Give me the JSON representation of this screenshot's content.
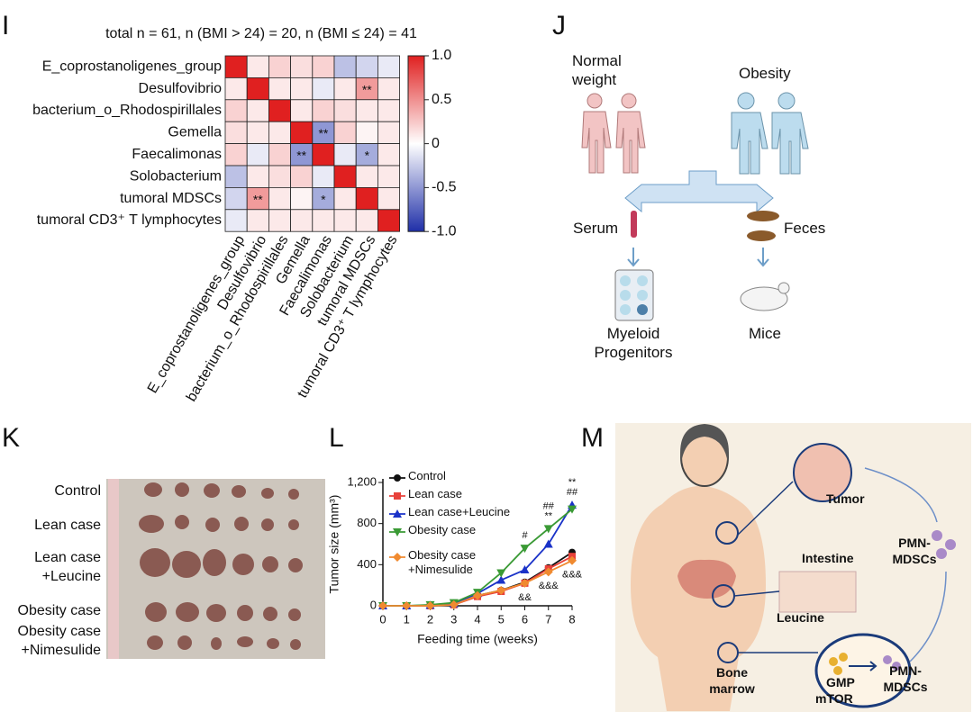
{
  "panel_letters": [
    "I",
    "J",
    "K",
    "L",
    "M"
  ],
  "chart_data": [
    {
      "type": "heatmap",
      "title": "total n = 61, n (BMI > 24) = 20, n (BMI ≤ 24) = 41",
      "rows": [
        "E_coprostanoligenes_group",
        "Desulfovibrio",
        "bacterium_o_Rhodospirillales",
        "Gemella",
        "Faecalimonas",
        "Solobacterium",
        "tumoral MDSCs",
        "tumoral CD3⁺ T lymphocytes"
      ],
      "columns": [
        "E_coprostanoligenes_group",
        "Desulfovibrio",
        "bacterium_o_Rhodospirillales",
        "Gemella",
        "Faecalimonas",
        "Solobacterium",
        "tumoral MDSCs",
        "tumoral CD3⁺ T lymphocytes"
      ],
      "z": [
        [
          1,
          0.1,
          0.2,
          0.15,
          0.2,
          -0.3,
          -0.2,
          -0.1
        ],
        [
          0.1,
          1,
          0.1,
          0.1,
          -0.1,
          0.1,
          0.45,
          0.1
        ],
        [
          0.2,
          0.1,
          1,
          0.1,
          0.2,
          0.15,
          0.1,
          0.1
        ],
        [
          0.15,
          0.1,
          0.1,
          1,
          -0.5,
          0.2,
          0.05,
          0.1
        ],
        [
          0.2,
          -0.1,
          0.2,
          -0.5,
          1,
          -0.1,
          -0.4,
          0.1
        ],
        [
          -0.3,
          0.1,
          0.15,
          0.2,
          -0.1,
          1,
          0.1,
          0.1
        ],
        [
          -0.2,
          0.45,
          0.1,
          0.05,
          -0.4,
          0.1,
          1,
          0.1
        ],
        [
          -0.1,
          0.1,
          0.1,
          0.1,
          0.1,
          0.1,
          0.1,
          1
        ]
      ],
      "zlim": [
        -1,
        1
      ],
      "colors": {
        "low": "#1f2fa8",
        "mid": "#ffffff",
        "high": "#e02020"
      },
      "colorbar_ticks": [
        {
          "value": 1,
          "label": "1.0"
        },
        0.5,
        0,
        -0.5,
        {
          "value": -1,
          "label": "-1.0"
        }
      ],
      "annotations": [
        {
          "row": 1,
          "col": 6,
          "label": "**"
        },
        {
          "row": 6,
          "col": 1,
          "label": "**"
        },
        {
          "row": 3,
          "col": 4,
          "label": "**"
        },
        {
          "row": 4,
          "col": 3,
          "label": "**"
        },
        {
          "row": 4,
          "col": 6,
          "label": "*"
        },
        {
          "row": 6,
          "col": 4,
          "label": "*"
        }
      ]
    },
    {
      "type": "line",
      "x_label": "Feeding time (weeks)",
      "y_label": "Tumor size (mm³)",
      "x": [
        0,
        1,
        2,
        3,
        4,
        5,
        6,
        7,
        8
      ],
      "xlim": [
        0,
        8
      ],
      "xticks": [
        0,
        1,
        2,
        3,
        4,
        5,
        6,
        7,
        8
      ],
      "ylim": [
        0,
        1200
      ],
      "yticks": [
        0,
        400,
        800,
        {
          "value": 1200,
          "label": "1,200"
        }
      ],
      "series": [
        {
          "name": "Control",
          "color": "#111111",
          "marker": "circle",
          "values": [
            0,
            0,
            0,
            10,
            100,
            150,
            230,
            370,
            520
          ]
        },
        {
          "name": "Lean case",
          "color": "#e8413a",
          "marker": "square",
          "values": [
            0,
            0,
            0,
            10,
            90,
            140,
            220,
            360,
            480
          ]
        },
        {
          "name": "Lean case+Leucine",
          "color": "#1a32c8",
          "marker": "triangle-up",
          "values": [
            0,
            0,
            5,
            20,
            120,
            250,
            350,
            600,
            980
          ]
        },
        {
          "name": "Obesity case",
          "color": "#3a9a35",
          "marker": "triangle-down",
          "values": [
            0,
            0,
            10,
            30,
            130,
            320,
            560,
            750,
            940
          ]
        },
        {
          "name": "Obesity case +Nimesulide",
          "color": "#f08a30",
          "marker": "diamond",
          "values": [
            0,
            0,
            0,
            10,
            100,
            150,
            220,
            330,
            440
          ]
        }
      ],
      "annotations": [
        {
          "x": 6,
          "label": "#",
          "side": "above"
        },
        {
          "x": 7,
          "label": "**",
          "side": "above"
        },
        {
          "x": 7,
          "label": "##",
          "side": "above"
        },
        {
          "x": 8,
          "label": "##",
          "side": "above"
        },
        {
          "x": 8,
          "label": "**",
          "side": "above"
        },
        {
          "x": 6,
          "label": "&&",
          "side": "below"
        },
        {
          "x": 7,
          "label": "&&&",
          "side": "below"
        },
        {
          "x": 8,
          "label": "&&&",
          "side": "below"
        }
      ]
    }
  ],
  "panel_j": {
    "groups": [
      "Normal weight",
      "Obesity"
    ],
    "samples": [
      "Serum",
      "Feces"
    ],
    "targets": [
      "Myeloid Progenitors",
      "Mice"
    ]
  },
  "panel_k": {
    "groups": [
      "Control",
      "Lean case",
      "Lean case +Leucine",
      "Obesity case",
      "Obesity case +Nimesulide"
    ]
  },
  "panel_m": {
    "labels": [
      "Tumor",
      "PMN-MDSCs",
      "Intestine",
      "Leucine",
      "Bone marrow",
      "GMP",
      "mTOR",
      "PMN-MDSCs"
    ]
  }
}
